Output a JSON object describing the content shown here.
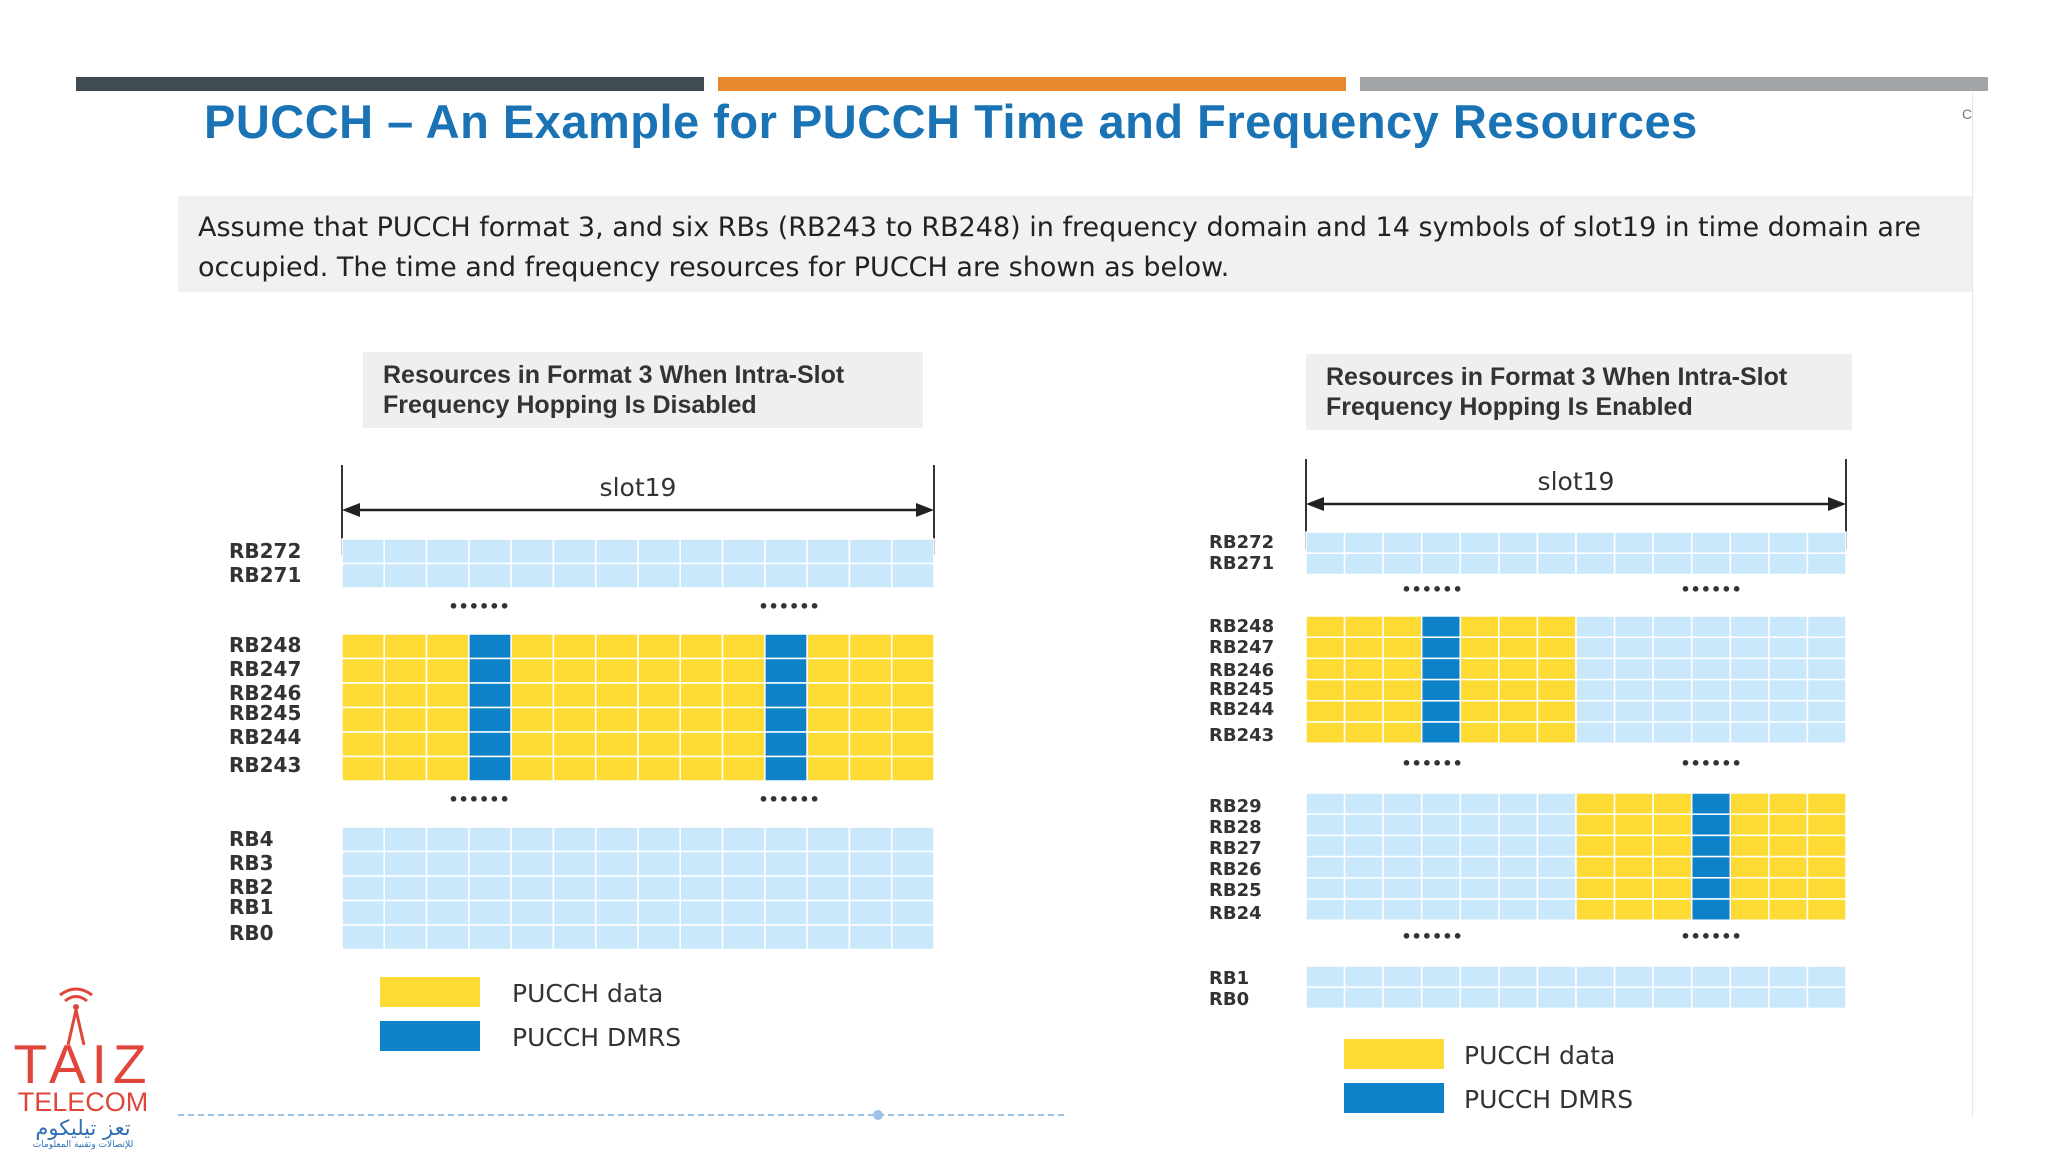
{
  "header_bars": {
    "colors": [
      "#404b52",
      "#e8882c",
      "#a1a5a8"
    ]
  },
  "slide": {
    "title": "PUCCH – An Example for PUCCH Time and Frequency Resources",
    "corner_text": "C",
    "intro": "Assume that PUCCH format 3, and six RBs (RB243 to RB248) in frequency domain and 14 symbols of slot19 in time domain are occupied. The time and frequency resources for PUCCH are shown as below."
  },
  "colors": {
    "empty": "#c9e8fb",
    "data": "#fddb34",
    "dmrs": "#0e82c8",
    "grid_line": "#ffffff"
  },
  "diagrams": {
    "left": {
      "caption": "Resources in Format 3 When Intra-Slot\nFrequency Hopping Is Disabled",
      "slot_label": "slot19",
      "dots": "••••••",
      "symbols": 14,
      "blocks": [
        {
          "rows": [
            "RB272",
            "RB271"
          ],
          "data_cols": [],
          "dmrs_cols": []
        },
        {
          "rows": [
            "RB248",
            "RB247",
            "RB246",
            "RB245",
            "RB244",
            "RB243"
          ],
          "data_cols": [
            0,
            1,
            2,
            4,
            5,
            6,
            7,
            8,
            9,
            11,
            12,
            13
          ],
          "dmrs_cols": [
            3,
            10
          ]
        },
        {
          "rows": [
            "RB4",
            "RB3",
            "RB2",
            "RB1",
            "RB0"
          ],
          "data_cols": [],
          "dmrs_cols": []
        }
      ],
      "legend": [
        {
          "label": "PUCCH data",
          "kind": "data"
        },
        {
          "label": "PUCCH DMRS",
          "kind": "dmrs"
        }
      ]
    },
    "right": {
      "caption": "Resources in Format 3 When Intra-Slot\nFrequency Hopping Is Enabled",
      "slot_label": "slot19",
      "dots": "••••••",
      "symbols": 14,
      "blocks": [
        {
          "rows": [
            "RB272",
            "RB271"
          ],
          "data_cols": [],
          "dmrs_cols": []
        },
        {
          "rows": [
            "RB248",
            "RB247",
            "RB246",
            "RB245",
            "RB244",
            "RB243"
          ],
          "data_cols": [
            0,
            1,
            2,
            4,
            5,
            6
          ],
          "dmrs_cols": [
            3
          ]
        },
        {
          "rows": [
            "RB29",
            "RB28",
            "RB27",
            "RB26",
            "RB25",
            "RB24"
          ],
          "data_cols": [
            7,
            8,
            9,
            11,
            12,
            13
          ],
          "dmrs_cols": [
            10
          ]
        },
        {
          "rows": [
            "RB1",
            "RB0"
          ],
          "data_cols": [],
          "dmrs_cols": []
        }
      ],
      "legend": [
        {
          "label": "PUCCH data",
          "kind": "data"
        },
        {
          "label": "PUCCH DMRS",
          "kind": "dmrs"
        }
      ]
    }
  },
  "logo": {
    "name": "TAIZ",
    "sub": "TELECOM",
    "arabic": "تعز تيليكوم",
    "arabic_tagline": "للإتصالات وتقنية المعلومات"
  }
}
